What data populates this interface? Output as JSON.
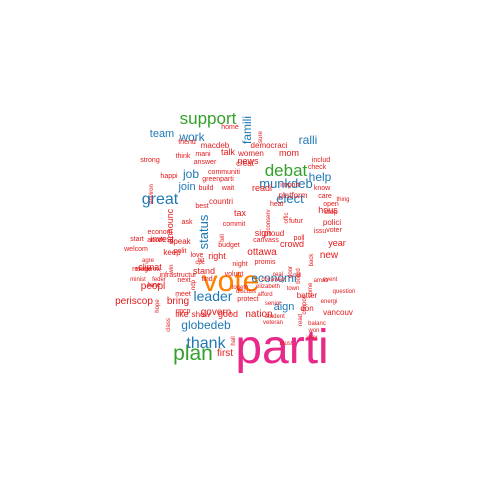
{
  "colors": {
    "pink": "#e7298a",
    "orange": "#ff7f00",
    "green": "#33a02c",
    "blue": "#1f78b4",
    "red": "#e31a1c"
  },
  "words": [
    {
      "text": "parti",
      "color": "pink"
    },
    {
      "text": "vote",
      "color": "orange"
    },
    {
      "text": "plan",
      "color": "green"
    },
    {
      "text": "support",
      "color": "green"
    },
    {
      "text": "debat",
      "color": "green"
    },
    {
      "text": "thank",
      "color": "blue"
    },
    {
      "text": "great",
      "color": "blue"
    },
    {
      "text": "leader",
      "color": "blue"
    },
    {
      "text": "munkdeb",
      "color": "blue"
    },
    {
      "text": "elect",
      "color": "blue"
    },
    {
      "text": "globedeb",
      "color": "blue"
    },
    {
      "text": "economi",
      "color": "blue"
    },
    {
      "text": "work",
      "color": "blue"
    },
    {
      "text": "job",
      "color": "blue"
    },
    {
      "text": "help",
      "color": "blue"
    },
    {
      "text": "ralli",
      "color": "blue"
    },
    {
      "text": "team",
      "color": "blue"
    },
    {
      "text": "famili",
      "color": "blue"
    },
    {
      "text": "join",
      "color": "blue"
    },
    {
      "text": "status",
      "color": "blue"
    },
    {
      "text": "aign",
      "color": "blue"
    },
    {
      "text": "first",
      "color": "red"
    },
    {
      "text": "govern",
      "color": "red"
    },
    {
      "text": "nation",
      "color": "red"
    },
    {
      "text": "bring",
      "color": "red"
    },
    {
      "text": "peopl",
      "color": "red"
    },
    {
      "text": "periscop",
      "color": "red"
    },
    {
      "text": "like",
      "color": "red"
    },
    {
      "text": "show",
      "color": "red"
    },
    {
      "text": "good",
      "color": "red"
    },
    {
      "text": "stand",
      "color": "red"
    },
    {
      "text": "ottawa",
      "color": "red"
    },
    {
      "text": "climat",
      "color": "red"
    },
    {
      "text": "invest",
      "color": "red"
    },
    {
      "text": "right",
      "color": "red"
    },
    {
      "text": "new",
      "color": "red"
    },
    {
      "text": "year",
      "color": "red"
    },
    {
      "text": "hous",
      "color": "red"
    },
    {
      "text": "readi",
      "color": "red"
    },
    {
      "text": "mom",
      "color": "red"
    },
    {
      "text": "tax",
      "color": "red"
    },
    {
      "text": "news",
      "color": "red"
    },
    {
      "text": "talk",
      "color": "red"
    },
    {
      "text": "women",
      "color": "red"
    },
    {
      "text": "macdeb",
      "color": "red"
    },
    {
      "text": "democraci",
      "color": "red"
    },
    {
      "text": "announc",
      "color": "red"
    },
    {
      "text": "sign",
      "color": "red"
    },
    {
      "text": "crowd",
      "color": "red"
    },
    {
      "text": "platform",
      "color": "red"
    },
    {
      "text": "polici",
      "color": "red"
    },
    {
      "text": "speak",
      "color": "red"
    },
    {
      "text": "keep",
      "color": "red"
    },
    {
      "text": "countri",
      "color": "red"
    },
    {
      "text": "creat",
      "color": "red"
    },
    {
      "text": "proud",
      "color": "red"
    },
    {
      "text": "vancouv",
      "color": "red"
    },
    {
      "text": "don",
      "color": "red"
    },
    {
      "text": "better",
      "color": "red"
    },
    {
      "text": "protect",
      "color": "red"
    },
    {
      "text": "meet",
      "color": "red"
    },
    {
      "text": "cpcp",
      "color": "red"
    },
    {
      "text": "next",
      "color": "red"
    },
    {
      "text": "find",
      "color": "red"
    },
    {
      "text": "lune",
      "color": "red"
    },
    {
      "text": "polit",
      "color": "red"
    },
    {
      "text": "start",
      "color": "red"
    },
    {
      "text": "home",
      "color": "red"
    },
    {
      "text": "friend",
      "color": "red"
    },
    {
      "text": "think",
      "color": "red"
    },
    {
      "text": "mani",
      "color": "red"
    },
    {
      "text": "answer",
      "color": "red"
    },
    {
      "text": "strong",
      "color": "red"
    },
    {
      "text": "happi",
      "color": "red"
    },
    {
      "text": "communiti",
      "color": "red"
    },
    {
      "text": "greenparti",
      "color": "red"
    },
    {
      "text": "build",
      "color": "red"
    },
    {
      "text": "wait",
      "color": "red"
    },
    {
      "text": "import",
      "color": "red"
    },
    {
      "text": "know",
      "color": "red"
    },
    {
      "text": "includ",
      "color": "red"
    },
    {
      "text": "check",
      "color": "red"
    },
    {
      "text": "care",
      "color": "red"
    },
    {
      "text": "open",
      "color": "red"
    },
    {
      "text": "issu",
      "color": "red"
    },
    {
      "text": "stop",
      "color": "red"
    },
    {
      "text": "voter",
      "color": "red"
    },
    {
      "text": "thing",
      "color": "red"
    },
    {
      "text": "canvass",
      "color": "red"
    },
    {
      "text": "poll",
      "color": "red"
    },
    {
      "text": "hear",
      "color": "red"
    },
    {
      "text": "futur",
      "color": "red"
    },
    {
      "text": "commit",
      "color": "red"
    },
    {
      "text": "best",
      "color": "red"
    },
    {
      "text": "econom",
      "color": "red"
    },
    {
      "text": "anoth",
      "color": "red"
    },
    {
      "text": "refuge",
      "color": "red"
    },
    {
      "text": "agre",
      "color": "red"
    },
    {
      "text": "welcom",
      "color": "red"
    },
    {
      "text": "tomorrow",
      "color": "red"
    },
    {
      "text": "infrastructur",
      "color": "red"
    },
    {
      "text": "ask",
      "color": "red"
    },
    {
      "text": "love",
      "color": "red"
    },
    {
      "text": "cpc",
      "color": "red"
    },
    {
      "text": "budget",
      "color": "red"
    },
    {
      "text": "tell",
      "color": "red"
    },
    {
      "text": "night",
      "color": "red"
    },
    {
      "text": "promis",
      "color": "red"
    },
    {
      "text": "volunt",
      "color": "red"
    },
    {
      "text": "real",
      "color": "red"
    },
    {
      "text": "call",
      "color": "red"
    },
    {
      "text": "cbc",
      "color": "red"
    },
    {
      "text": "away",
      "color": "red"
    },
    {
      "text": "togeth",
      "color": "red"
    },
    {
      "text": "elizabeth",
      "color": "red"
    },
    {
      "text": "afford",
      "color": "red"
    },
    {
      "text": "town",
      "color": "red"
    },
    {
      "text": "discuss",
      "color": "red"
    },
    {
      "text": "senior",
      "color": "red"
    },
    {
      "text": "student",
      "color": "red"
    },
    {
      "text": "veteran",
      "color": "red"
    },
    {
      "text": "must",
      "color": "red"
    },
    {
      "text": "balanc",
      "color": "red"
    },
    {
      "text": "won",
      "color": "red"
    },
    {
      "text": "way",
      "color": "red"
    },
    {
      "text": "energi",
      "color": "red"
    },
    {
      "text": "event",
      "color": "red"
    },
    {
      "text": "question",
      "color": "red"
    },
    {
      "text": "minist",
      "color": "red"
    },
    {
      "text": "feder",
      "color": "red"
    },
    {
      "text": "class",
      "color": "red"
    },
    {
      "text": "hope",
      "color": "red"
    },
    {
      "text": "hall",
      "color": "red"
    },
    {
      "text": "sure",
      "color": "red"
    },
    {
      "text": "environ",
      "color": "red"
    },
    {
      "text": "conserv",
      "color": "red"
    },
    {
      "text": "offic",
      "color": "red"
    },
    {
      "text": "door",
      "color": "red"
    },
    {
      "text": "board",
      "color": "red"
    },
    {
      "text": "back",
      "color": "red"
    },
    {
      "text": "come",
      "color": "red"
    },
    {
      "text": "read",
      "color": "red"
    },
    {
      "text": "amaz",
      "color": "red"
    },
    {
      "text": "win",
      "color": "red"
    },
    {
      "text": "bit",
      "color": "red"
    },
    {
      "text": "ndp",
      "color": "red"
    },
    {
      "text": "cdnpoli",
      "color": "red"
    }
  ]
}
